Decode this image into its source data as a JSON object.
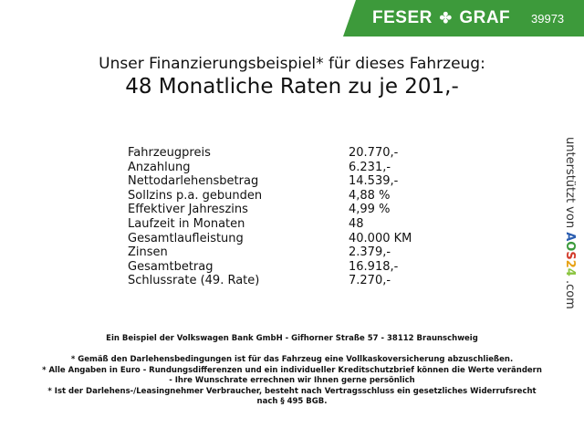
{
  "header": {
    "brand_left": "FESER",
    "brand_right": "GRAF",
    "logo_icon": "clover-icon",
    "code": "39973",
    "color": "#3d9a3b"
  },
  "title": {
    "line1": "Unser Finanzierungsbeispiel* für dieses Fahrzeug:",
    "line2": "48 Monatliche Raten zu je 201,-"
  },
  "rows": [
    {
      "label": "Fahrzeugpreis",
      "value": "20.770,-"
    },
    {
      "label": "Anzahlung",
      "value": "6.231,-"
    },
    {
      "label": "Nettodarlehensbetrag",
      "value": "14.539,-"
    },
    {
      "label": "Sollzins p.a. gebunden",
      "value": "4,88 %"
    },
    {
      "label": "Effektiver Jahreszins",
      "value": "4,99 %"
    },
    {
      "label": "Laufzeit in Monaten",
      "value": "48"
    },
    {
      "label": "Gesamtlaufleistung",
      "value": "40.000 KM"
    },
    {
      "label": "Zinsen",
      "value": "2.379,-"
    },
    {
      "label": "Gesamtbetrag",
      "value": "16.918,-"
    },
    {
      "label": "Schlussrate (49. Rate)",
      "value": "7.270,-"
    }
  ],
  "side": {
    "text": "unterstützt von",
    "logo": [
      "A",
      "O",
      "S",
      "2",
      "4"
    ],
    "suffix": ".com"
  },
  "footer": {
    "bank": "Ein Beispiel der Volkswagen Bank GmbH - Gifhorner Straße 57 - 38112 Braunschweig",
    "notes": [
      "* Gemäß den Darlehensbedingungen ist für das Fahrzeug eine Vollkaskoversicherung abzuschließen.",
      "* Alle Angaben in Euro - Rundungsdifferenzen und ein individueller Kreditschutzbrief können die Werte verändern",
      "- Ihre Wunschrate errechnen wir Ihnen gerne persönlich",
      "* Ist der Darlehens-/Leasingnehmer Verbraucher, besteht nach Vertragsschluss ein gesetzliches Widerrufsrecht",
      "nach § 495 BGB."
    ]
  }
}
